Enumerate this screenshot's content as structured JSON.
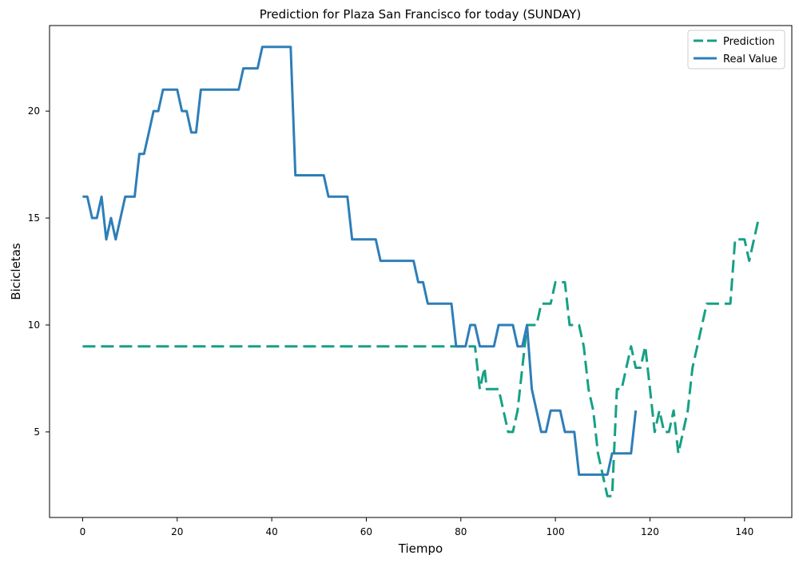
{
  "chart_data": {
    "type": "line",
    "title": "Prediction for Plaza San Francisco for today (SUNDAY)",
    "xlabel": "Tiempo",
    "ylabel": "Bicicletas",
    "xlim": [
      -7,
      150
    ],
    "ylim": [
      1,
      24
    ],
    "xticks": [
      0,
      20,
      40,
      60,
      80,
      100,
      120,
      140
    ],
    "yticks": [
      5,
      10,
      15,
      20
    ],
    "grid": false,
    "legend_position": "top-right",
    "series": [
      {
        "name": "Prediction",
        "color": "#16a085",
        "style": "dashed",
        "points": [
          [
            0,
            9
          ],
          [
            83,
            9
          ],
          [
            84,
            7
          ],
          [
            85,
            8
          ],
          [
            85.5,
            7
          ],
          [
            87,
            7
          ],
          [
            88,
            7
          ],
          [
            90,
            5
          ],
          [
            91,
            5
          ],
          [
            92,
            6
          ],
          [
            94,
            10
          ],
          [
            96,
            10
          ],
          [
            97,
            11
          ],
          [
            99,
            11
          ],
          [
            100,
            12
          ],
          [
            102,
            12
          ],
          [
            103,
            10
          ],
          [
            105,
            10
          ],
          [
            106,
            9
          ],
          [
            107,
            7
          ],
          [
            108,
            6
          ],
          [
            109,
            4
          ],
          [
            110,
            3
          ],
          [
            111,
            2
          ],
          [
            112,
            2
          ],
          [
            113,
            7
          ],
          [
            114,
            7
          ],
          [
            115,
            8
          ],
          [
            116,
            9
          ],
          [
            117,
            8
          ],
          [
            118,
            8
          ],
          [
            119,
            9
          ],
          [
            120,
            7
          ],
          [
            121,
            5
          ],
          [
            122,
            6
          ],
          [
            123,
            5
          ],
          [
            124,
            5
          ],
          [
            125,
            6
          ],
          [
            126,
            4
          ],
          [
            127,
            5
          ],
          [
            128,
            6
          ],
          [
            129,
            8
          ],
          [
            130,
            9
          ],
          [
            131,
            10
          ],
          [
            132,
            11
          ],
          [
            137,
            11
          ],
          [
            138,
            14
          ],
          [
            139,
            14
          ],
          [
            140,
            14
          ],
          [
            141,
            13
          ],
          [
            143,
            15
          ]
        ]
      },
      {
        "name": "Real Value",
        "color": "#2e7eb8",
        "style": "solid",
        "points": [
          [
            0,
            16
          ],
          [
            1,
            16
          ],
          [
            2,
            15
          ],
          [
            3,
            15
          ],
          [
            4,
            16
          ],
          [
            5,
            14
          ],
          [
            6,
            15
          ],
          [
            7,
            14
          ],
          [
            8,
            15
          ],
          [
            9,
            16
          ],
          [
            11,
            16
          ],
          [
            12,
            18
          ],
          [
            13,
            18
          ],
          [
            14,
            19
          ],
          [
            15,
            20
          ],
          [
            16,
            20
          ],
          [
            17,
            21
          ],
          [
            20,
            21
          ],
          [
            21,
            20
          ],
          [
            22,
            20
          ],
          [
            23,
            19
          ],
          [
            24,
            19
          ],
          [
            25,
            21
          ],
          [
            33,
            21
          ],
          [
            34,
            22
          ],
          [
            37,
            22
          ],
          [
            38,
            23
          ],
          [
            44,
            23
          ],
          [
            45,
            17
          ],
          [
            51,
            17
          ],
          [
            52,
            16
          ],
          [
            56,
            16
          ],
          [
            57,
            14
          ],
          [
            62,
            14
          ],
          [
            63,
            13
          ],
          [
            70,
            13
          ],
          [
            71,
            12
          ],
          [
            72,
            12
          ],
          [
            73,
            11
          ],
          [
            78,
            11
          ],
          [
            79,
            9
          ],
          [
            81,
            9
          ],
          [
            82,
            10
          ],
          [
            83,
            10
          ],
          [
            84,
            9
          ],
          [
            87,
            9
          ],
          [
            88,
            10
          ],
          [
            91,
            10
          ],
          [
            92,
            9
          ],
          [
            93,
            9
          ],
          [
            94,
            10
          ],
          [
            95,
            7
          ],
          [
            97,
            5
          ],
          [
            98,
            5
          ],
          [
            99,
            6
          ],
          [
            101,
            6
          ],
          [
            102,
            5
          ],
          [
            104,
            5
          ],
          [
            105,
            3
          ],
          [
            110,
            3
          ],
          [
            111,
            3
          ],
          [
            112,
            4
          ],
          [
            116,
            4
          ],
          [
            117,
            6
          ]
        ]
      }
    ]
  }
}
